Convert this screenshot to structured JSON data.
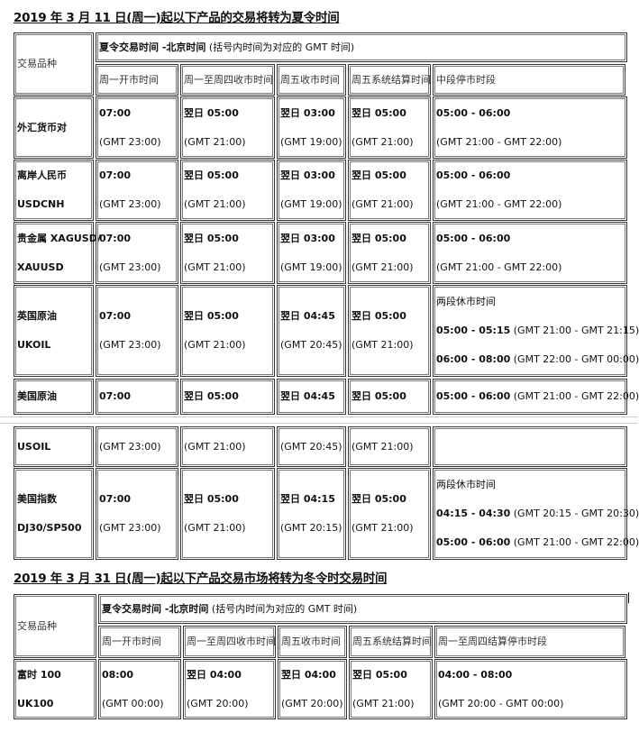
{
  "section1": {
    "title": "2019 年 3 月 11 日(周一)起以下产品的交易将转为夏令时间",
    "header": {
      "item_label": "交易品种",
      "group_bold": "夏令交易时间 -北京时间",
      "group_note": " (括号内时间为对应的 GMT 时间)",
      "columns": [
        "周一开市时间",
        "周一至周四收市时间",
        "周五收市时间",
        "周五系统结算时间",
        "中段停市时段"
      ]
    },
    "rows": [
      {
        "name": [
          "外汇货币对"
        ],
        "cells": [
          [
            {
              "b": "07:00"
            },
            {
              "t": "(GMT 23:00)"
            }
          ],
          [
            {
              "b": "翌日 05:00"
            },
            {
              "t": "(GMT 21:00)"
            }
          ],
          [
            {
              "b": "翌日 03:00"
            },
            {
              "t": "(GMT 19:00)"
            }
          ],
          [
            {
              "b": "翌日 05:00"
            },
            {
              "t": "(GMT 21:00)"
            }
          ],
          [
            {
              "b": "05:00 - 06:00"
            },
            {
              "t": "(GMT 21:00 - GMT 22:00)"
            }
          ]
        ]
      },
      {
        "name": [
          "离岸人民币",
          "USDCNH"
        ],
        "cells": [
          [
            {
              "b": "07:00"
            },
            {
              "t": "(GMT 23:00)"
            }
          ],
          [
            {
              "b": "翌日 05:00"
            },
            {
              "t": "  (GMT 21:00)"
            }
          ],
          [
            {
              "b": "翌日 03:00"
            },
            {
              "t": "(GMT 19:00)"
            }
          ],
          [
            {
              "b": "翌日 05:00"
            },
            {
              "t": "(GMT 21:00)"
            }
          ],
          [
            {
              "b": "05:00 - 06:00"
            },
            {
              "t": "(GMT 21:00 - GMT 22:00)"
            }
          ]
        ]
      },
      {
        "name": [
          "贵金属 XAGUSD/",
          "XAUUSD"
        ],
        "cells": [
          [
            {
              "b": "07:00"
            },
            {
              "t": "(GMT 23:00)"
            }
          ],
          [
            {
              "b": "翌日 05:00"
            },
            {
              "t": "(GMT 21:00)"
            }
          ],
          [
            {
              "b": "翌日 03:00"
            },
            {
              "t": "(GMT 19:00)"
            }
          ],
          [
            {
              "b": "翌日 05:00"
            },
            {
              "t": "(GMT 21:00)"
            }
          ],
          [
            {
              "b": "05:00 - 06:00"
            },
            {
              "t": "(GMT 21:00 - GMT 22:00)"
            }
          ]
        ]
      },
      {
        "name": [
          "英国原油",
          "UKOIL"
        ],
        "cells": [
          [
            {
              "b": "07:00"
            },
            {
              "t": "(GMT 23:00)"
            }
          ],
          [
            {
              "b": "翌日 05:00"
            },
            {
              "t": "(GMT 21:00)"
            }
          ],
          [
            {
              "b": "翌日 04:45"
            },
            {
              "t": "(GMT 20:45)"
            }
          ],
          [
            {
              "b": "翌日 05:00"
            },
            {
              "t": "(GMT 21:00)"
            }
          ],
          [
            {
              "t": "两段休市时间"
            },
            {
              "b": "05:00 - 05:15",
              "t": " (GMT 21:00 - GMT 21:15)"
            },
            {
              "b": "06:00 - 08:00",
              "t": " (GMT 22:00 - GMT 00:00)"
            }
          ]
        ]
      },
      {
        "name": [
          "美国原油"
        ],
        "cells": [
          [
            {
              "b": "07:00"
            }
          ],
          [
            {
              "b": "翌日 05:00"
            }
          ],
          [
            {
              "b": "翌日 04:45"
            }
          ],
          [
            {
              "b": "翌日 05:00"
            }
          ],
          [
            {
              "b": "05:00 - 06:00",
              "t": " (GMT 21:00 - GMT 22:00)"
            }
          ]
        ]
      },
      {
        "name": [
          "USOIL"
        ],
        "cells": [
          [
            {
              "t": "(GMT 23:00)"
            }
          ],
          [
            {
              "t": "(GMT 21:00)"
            }
          ],
          [
            {
              "t": "(GMT 20:45)"
            }
          ],
          [
            {
              "t": "(GMT 21:00)"
            }
          ],
          []
        ]
      },
      {
        "name": [
          "美国指数",
          "DJ30/SP500"
        ],
        "cells": [
          [
            {
              "b": "07:00"
            },
            {
              "t": "(GMT 23:00)"
            }
          ],
          [
            {
              "b": "翌日 05:00"
            },
            {
              "t": "(GMT 21:00)"
            }
          ],
          [
            {
              "b": "翌日 04:15"
            },
            {
              "t": "(GMT 20:15)"
            }
          ],
          [
            {
              "b": "翌日 05:00"
            },
            {
              "t": "(GMT 21:00)"
            }
          ],
          [
            {
              "t": "两段休市时间"
            },
            {
              "b": "04:15 - 04:30",
              "t": " (GMT 20:15 - GMT 20:30)"
            },
            {
              "b": "05:00 - 06:00",
              "t": " (GMT 21:00 - GMT 22:00)"
            }
          ]
        ]
      }
    ]
  },
  "section2": {
    "title": "2019 年 3 月 31 日(周一)起以下产品交易市场将转为冬令时交易时间",
    "header": {
      "item_label": "交易品种",
      "group_bold": "夏令交易时间 -北京时间",
      "group_note": " (括号内时间为对应的 GMT 时间)",
      "columns": [
        "周一开市时间",
        "周一至周四收市时间",
        "周五收市时间",
        "周五系统结算时间",
        "周一至周四结算停市时段"
      ]
    },
    "rows": [
      {
        "name": [
          "富时 100",
          "UK100"
        ],
        "cells": [
          [
            {
              "b": "08:00"
            },
            {
              "t": "(GMT 00:00)"
            }
          ],
          [
            {
              "b": "翌日 04:00"
            },
            {
              "t": "(GMT 20:00)"
            }
          ],
          [
            {
              "b": "翌日 04:00"
            },
            {
              "t": "(GMT 20:00)"
            }
          ],
          [
            {
              "b": "翌日 05:00"
            },
            {
              "t": "(GMT 21:00)"
            }
          ],
          [
            {
              "b": "04:00 - 08:00"
            },
            {
              "t": "(GMT 20:00 - GMT 00:00)"
            }
          ]
        ]
      }
    ]
  }
}
